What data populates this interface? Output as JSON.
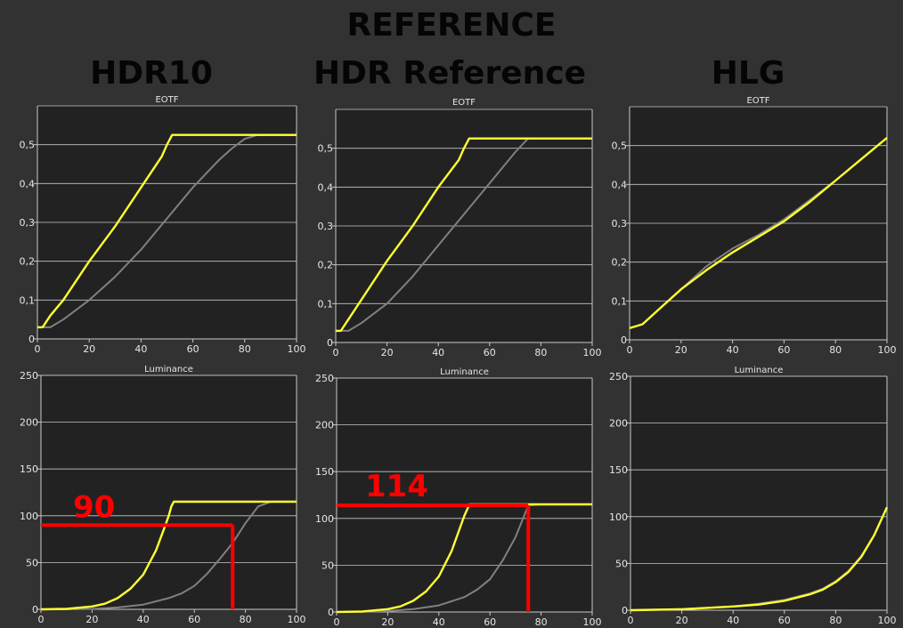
{
  "page": {
    "title": "REFERENCE",
    "columns": [
      "HDR10",
      "HDR Reference",
      "HLG"
    ]
  },
  "colors": {
    "background": "#323232",
    "plot_bg": "#222222",
    "grid": "#c8c8c8",
    "axis_text": "#e6e6e6",
    "target_curve": "#808080",
    "measured_curve": "#ffff33",
    "marker": "#ff0000"
  },
  "chart_data": [
    {
      "type": "line",
      "title": "EOTF",
      "xlim": [
        0,
        100
      ],
      "ylim": [
        0,
        0.6
      ],
      "x_ticks": [
        "0",
        "20",
        "40",
        "60",
        "80",
        "100"
      ],
      "y_ticks": [
        "0",
        "0,1",
        "0,2",
        "0,3",
        "0,4",
        "0,5"
      ],
      "y_tick_values": [
        0,
        0.1,
        0.2,
        0.3,
        0.4,
        0.5
      ],
      "grid": true,
      "series": [
        {
          "color": "#808080",
          "x": [
            0,
            5,
            10,
            20,
            30,
            40,
            50,
            60,
            70,
            75,
            80,
            85,
            90,
            100
          ],
          "y": [
            0.03,
            0.03,
            0.05,
            0.1,
            0.16,
            0.23,
            0.31,
            0.39,
            0.46,
            0.49,
            0.515,
            0.525,
            0.525,
            0.525
          ]
        },
        {
          "color": "#ffff33",
          "x": [
            0,
            2,
            5,
            10,
            20,
            30,
            40,
            48,
            50,
            52,
            55,
            60,
            80,
            100
          ],
          "y": [
            0.03,
            0.03,
            0.06,
            0.1,
            0.2,
            0.29,
            0.39,
            0.47,
            0.5,
            0.525,
            0.525,
            0.525,
            0.525,
            0.525
          ]
        }
      ]
    },
    {
      "type": "line",
      "title": "EOTF",
      "xlim": [
        0,
        100
      ],
      "ylim": [
        0,
        0.6
      ],
      "x_ticks": [
        "0",
        "20",
        "40",
        "60",
        "80",
        "100"
      ],
      "y_ticks": [
        "0",
        "0,1",
        "0,2",
        "0,3",
        "0,4",
        "0,5"
      ],
      "y_tick_values": [
        0,
        0.1,
        0.2,
        0.3,
        0.4,
        0.5
      ],
      "grid": true,
      "series": [
        {
          "color": "#808080",
          "x": [
            0,
            5,
            10,
            20,
            30,
            40,
            50,
            60,
            70,
            75,
            80,
            100
          ],
          "y": [
            0.03,
            0.03,
            0.05,
            0.1,
            0.17,
            0.25,
            0.33,
            0.41,
            0.49,
            0.525,
            0.525,
            0.525
          ]
        },
        {
          "color": "#ffff33",
          "x": [
            0,
            2,
            5,
            10,
            20,
            30,
            40,
            48,
            50,
            52,
            55,
            80,
            100
          ],
          "y": [
            0.03,
            0.03,
            0.06,
            0.11,
            0.21,
            0.3,
            0.4,
            0.47,
            0.5,
            0.525,
            0.525,
            0.525,
            0.525
          ]
        }
      ]
    },
    {
      "type": "line",
      "title": "EOTF",
      "xlim": [
        0,
        100
      ],
      "ylim": [
        0,
        0.6
      ],
      "x_ticks": [
        "0",
        "20",
        "40",
        "60",
        "80",
        "100"
      ],
      "y_ticks": [
        "0",
        "0,1",
        "0,2",
        "0,3",
        "0,4",
        "0,5"
      ],
      "y_tick_values": [
        0,
        0.1,
        0.2,
        0.3,
        0.4,
        0.5
      ],
      "grid": true,
      "series": [
        {
          "color": "#808080",
          "x": [
            0,
            5,
            10,
            20,
            30,
            40,
            50,
            60,
            70,
            80,
            90,
            100
          ],
          "y": [
            0.03,
            0.04,
            0.07,
            0.13,
            0.19,
            0.235,
            0.27,
            0.31,
            0.36,
            0.41,
            0.465,
            0.52
          ]
        },
        {
          "color": "#ffff33",
          "x": [
            0,
            5,
            10,
            20,
            30,
            40,
            50,
            60,
            70,
            80,
            90,
            100
          ],
          "y": [
            0.03,
            0.04,
            0.07,
            0.13,
            0.18,
            0.225,
            0.265,
            0.305,
            0.355,
            0.41,
            0.465,
            0.52
          ]
        }
      ]
    },
    {
      "type": "line",
      "title": "Luminance",
      "xlim": [
        0,
        100
      ],
      "ylim": [
        0,
        250
      ],
      "x_ticks": [
        "0",
        "20",
        "40",
        "60",
        "80",
        "100"
      ],
      "y_ticks": [
        "0",
        "50",
        "100",
        "150",
        "200",
        "250"
      ],
      "y_tick_values": [
        0,
        50,
        100,
        150,
        200,
        250
      ],
      "grid": true,
      "series": [
        {
          "color": "#808080",
          "x": [
            0,
            10,
            20,
            30,
            40,
            50,
            55,
            60,
            65,
            70,
            75,
            80,
            85,
            90,
            100
          ],
          "y": [
            0,
            0,
            0.5,
            2,
            5,
            12,
            17,
            25,
            38,
            54,
            71,
            92,
            110,
            115,
            115
          ]
        },
        {
          "color": "#ffff33",
          "x": [
            0,
            10,
            20,
            25,
            30,
            35,
            40,
            45,
            48,
            50,
            51,
            52,
            55,
            60,
            100
          ],
          "y": [
            0,
            0.5,
            3,
            6,
            12,
            22,
            37,
            63,
            85,
            100,
            110,
            115,
            115,
            115,
            115
          ]
        }
      ],
      "marker": {
        "label": "90",
        "x": 75,
        "y": 90
      }
    },
    {
      "type": "line",
      "title": "Luminance",
      "xlim": [
        0,
        100
      ],
      "ylim": [
        0,
        250
      ],
      "x_ticks": [
        "0",
        "20",
        "40",
        "60",
        "80",
        "100"
      ],
      "y_ticks": [
        "0",
        "50",
        "100",
        "150",
        "200",
        "250"
      ],
      "y_tick_values": [
        0,
        50,
        100,
        150,
        200,
        250
      ],
      "grid": true,
      "series": [
        {
          "color": "#808080",
          "x": [
            0,
            20,
            30,
            40,
            50,
            55,
            60,
            65,
            70,
            75,
            80,
            100
          ],
          "y": [
            0,
            1,
            3,
            7,
            16,
            24,
            35,
            55,
            80,
            114,
            115,
            115
          ]
        },
        {
          "color": "#ffff33",
          "x": [
            0,
            10,
            20,
            25,
            30,
            35,
            40,
            45,
            48,
            50,
            52,
            55,
            100
          ],
          "y": [
            0,
            0.5,
            3,
            6,
            12,
            22,
            38,
            65,
            88,
            103,
            115,
            115,
            115
          ]
        }
      ],
      "marker": {
        "label": "114",
        "x": 75,
        "y": 114
      }
    },
    {
      "type": "line",
      "title": "Luminance",
      "xlim": [
        0,
        100
      ],
      "ylim": [
        0,
        250
      ],
      "x_ticks": [
        "0",
        "20",
        "40",
        "60",
        "80",
        "100"
      ],
      "y_ticks": [
        "0",
        "50",
        "100",
        "150",
        "200",
        "250"
      ],
      "y_tick_values": [
        0,
        50,
        100,
        150,
        200,
        250
      ],
      "grid": true,
      "series": [
        {
          "color": "#808080",
          "x": [
            0,
            20,
            40,
            50,
            60,
            70,
            75,
            80,
            85,
            90,
            95,
            100
          ],
          "y": [
            0,
            1,
            4,
            7,
            11,
            18,
            23,
            31,
            42,
            58,
            80,
            110
          ]
        },
        {
          "color": "#ffff33",
          "x": [
            0,
            20,
            40,
            50,
            60,
            70,
            75,
            80,
            85,
            90,
            95,
            100
          ],
          "y": [
            0,
            1,
            4,
            6,
            10,
            17,
            22,
            30,
            41,
            57,
            80,
            110
          ]
        }
      ]
    }
  ]
}
